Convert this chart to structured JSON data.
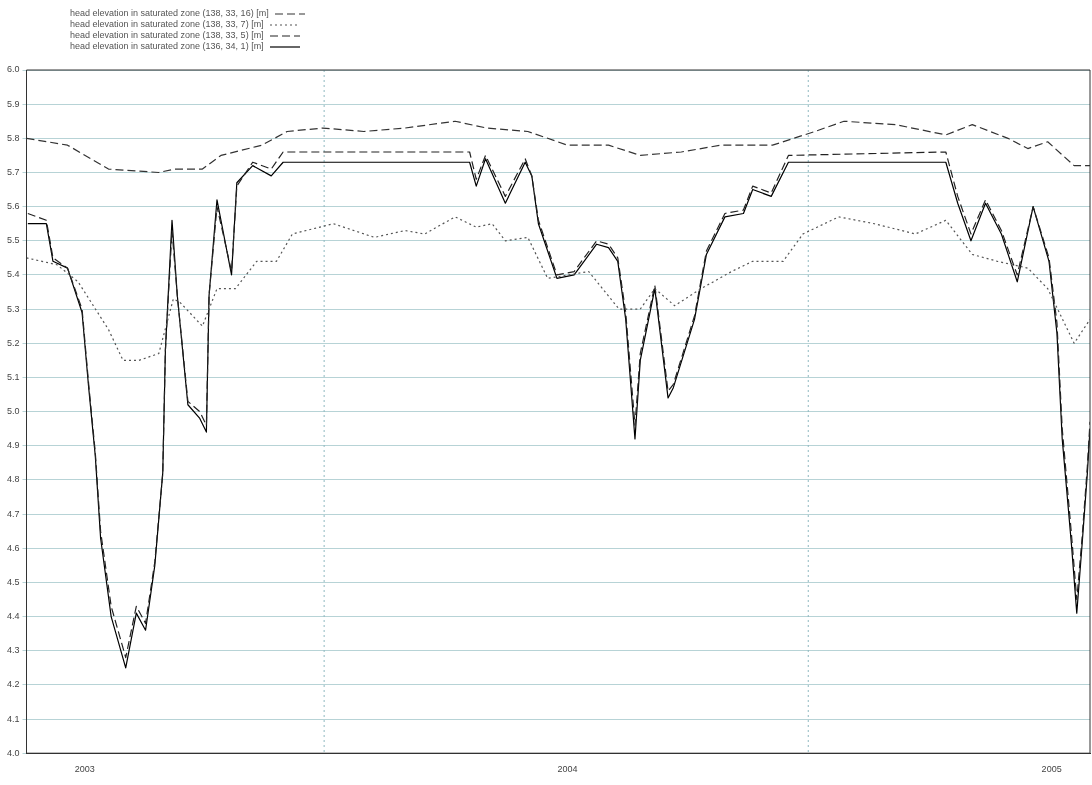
{
  "chart_data": {
    "type": "line",
    "legend": "top left",
    "grid": "y",
    "xlim": [
      "2002-11-18",
      "2005-01-30"
    ],
    "xticks": [
      "2003",
      "2004",
      "2005"
    ],
    "ylim": [
      4,
      6
    ],
    "yticks": [
      {
        "value": 4,
        "label": "4.0"
      },
      {
        "value": 4.1,
        "label": "4.1"
      },
      {
        "value": 4.2,
        "label": "4.2"
      },
      {
        "value": 4.3,
        "label": "4.3"
      },
      {
        "value": 4.4,
        "label": "4.4"
      },
      {
        "value": 4.5,
        "label": "4.5"
      },
      {
        "value": 4.6,
        "label": "4.6"
      },
      {
        "value": 4.7,
        "label": "4.7"
      },
      {
        "value": 4.8,
        "label": "4.8"
      },
      {
        "value": 4.9,
        "label": "4.9"
      },
      {
        "value": 5,
        "label": "5.0"
      },
      {
        "value": 5.1,
        "label": "5.1"
      },
      {
        "value": 5.2,
        "label": "5.2"
      },
      {
        "value": 5.3,
        "label": "5.3"
      },
      {
        "value": 5.4,
        "label": "5.4"
      },
      {
        "value": 5.5,
        "label": "5.5"
      },
      {
        "value": 5.6,
        "label": "5.6"
      },
      {
        "value": 5.7,
        "label": "5.7"
      },
      {
        "value": 5.8,
        "label": "5.8"
      },
      {
        "value": 5.9,
        "label": "5.9"
      },
      {
        "value": 6,
        "label": "6.0"
      }
    ],
    "ref_lines": [
      {
        "axis": "x",
        "value": "2003-07-01",
        "color": "#8fb8c0",
        "line_style": "dotted"
      },
      {
        "axis": "x",
        "value": "2004-07-01",
        "color": "#8fb8c0",
        "line_style": "dotted"
      }
    ],
    "series": [
      {
        "name": "head elevation in saturated zone (138, 33, 16) [m]",
        "color": "#333333",
        "line_style": "dashed",
        "x": [
          "2002-11-18",
          "2002-12-19",
          "2003-01-19",
          "2003-02-26",
          "2003-03-10",
          "2003-03-31",
          "2003-04-14",
          "2003-05-15",
          "2003-06-03",
          "2003-06-30",
          "2003-07-31",
          "2003-08-31",
          "2003-10-08",
          "2003-11-01",
          "2003-12-02",
          "2004-01-01",
          "2004-02-01",
          "2004-02-25",
          "2004-03-27",
          "2004-04-26",
          "2004-06-04",
          "2004-07-06",
          "2004-07-28",
          "2004-09-05",
          "2004-10-13",
          "2004-11-02",
          "2004-11-29",
          "2004-12-14",
          "2004-12-29",
          "2005-01-18",
          "2005-01-30"
        ],
        "values": [
          5.8,
          5.78,
          5.71,
          5.7,
          5.71,
          5.71,
          5.75,
          5.78,
          5.82,
          5.83,
          5.82,
          5.83,
          5.85,
          5.83,
          5.82,
          5.78,
          5.78,
          5.75,
          5.76,
          5.78,
          5.78,
          5.82,
          5.85,
          5.84,
          5.81,
          5.84,
          5.8,
          5.77,
          5.79,
          5.72,
          5.72
        ]
      },
      {
        "name": "head elevation in saturated zone (138, 33, 7) [m]",
        "color": "#555555",
        "line_style": "dotted",
        "x": [
          "2002-11-18",
          "2002-12-11",
          "2002-12-27",
          "2003-01-19",
          "2003-01-30",
          "2003-02-11",
          "2003-02-26",
          "2003-03-09",
          "2003-03-14",
          "2003-03-31",
          "2003-04-11",
          "2003-04-25",
          "2003-05-11",
          "2003-05-26",
          "2003-06-07",
          "2003-07-08",
          "2003-08-08",
          "2003-08-31",
          "2003-09-15",
          "2003-10-08",
          "2003-10-24",
          "2003-11-05",
          "2003-11-15",
          "2003-12-02",
          "2003-12-17",
          "2004-01-17",
          "2004-02-09",
          "2004-02-25",
          "2004-03-07",
          "2004-03-22",
          "2004-04-11",
          "2004-05-04",
          "2004-05-20",
          "2004-06-12",
          "2004-06-27",
          "2004-07-24",
          "2004-08-20",
          "2004-09-20",
          "2004-10-13",
          "2004-11-02",
          "2004-11-21",
          "2004-12-14",
          "2004-12-29",
          "2005-01-18",
          "2005-01-30"
        ],
        "values": [
          5.45,
          5.43,
          5.38,
          5.24,
          5.15,
          5.15,
          5.17,
          5.33,
          5.32,
          5.25,
          5.36,
          5.36,
          5.44,
          5.44,
          5.52,
          5.55,
          5.51,
          5.53,
          5.52,
          5.57,
          5.54,
          5.55,
          5.5,
          5.51,
          5.39,
          5.41,
          5.3,
          5.3,
          5.36,
          5.31,
          5.36,
          5.41,
          5.44,
          5.44,
          5.52,
          5.57,
          5.55,
          5.52,
          5.56,
          5.46,
          5.44,
          5.42,
          5.36,
          5.2,
          5.27
        ]
      },
      {
        "name": "head elevation in saturated zone (138, 33, 5) [m]",
        "color": "#222222",
        "line_style": "dashed",
        "x": [
          "2002-11-19",
          "2002-12-03",
          "2002-12-08",
          "2002-12-19",
          "2002-12-30",
          "2003-01-04",
          "2003-01-09",
          "2003-01-13",
          "2003-01-21",
          "2003-02-01",
          "2003-02-09",
          "2003-02-16",
          "2003-02-23",
          "2003-03-01",
          "2003-03-03",
          "2003-03-08",
          "2003-03-12",
          "2003-03-20",
          "2003-03-29",
          "2003-04-03",
          "2003-04-05",
          "2003-04-11",
          "2003-04-22",
          "2003-04-26",
          "2003-05-08",
          "2003-05-22",
          "2003-05-31",
          "2003-10-19",
          "2003-10-24",
          "2003-10-31",
          "2003-11-15",
          "2003-11-30",
          "2003-12-05",
          "2003-12-10",
          "2003-12-24",
          "2004-01-06",
          "2004-01-23",
          "2004-02-01",
          "2004-02-08",
          "2004-02-14",
          "2004-02-21",
          "2004-02-25",
          "2004-03-07",
          "2004-03-17",
          "2004-03-21",
          "2004-04-06",
          "2004-04-15",
          "2004-04-29",
          "2004-05-13",
          "2004-05-20",
          "2004-06-03",
          "2004-06-16",
          "2004-10-13",
          "2004-10-22",
          "2004-11-01",
          "2004-11-12",
          "2004-11-24",
          "2004-12-06",
          "2004-12-18",
          "2004-12-30",
          "2005-01-05",
          "2005-01-09",
          "2005-01-16",
          "2005-01-20",
          "2005-01-24",
          "2005-01-28",
          "2005-01-30"
        ],
        "values": [
          5.58,
          5.56,
          5.45,
          5.42,
          5.3,
          5.08,
          4.88,
          4.65,
          4.43,
          4.28,
          4.43,
          4.38,
          4.56,
          4.82,
          5.18,
          5.53,
          5.34,
          5.03,
          5.0,
          4.96,
          5.34,
          5.6,
          5.41,
          5.66,
          5.73,
          5.71,
          5.76,
          5.76,
          5.68,
          5.75,
          5.63,
          5.74,
          5.69,
          5.56,
          5.4,
          5.41,
          5.5,
          5.49,
          5.45,
          5.29,
          4.96,
          5.17,
          5.37,
          5.06,
          5.08,
          5.28,
          5.47,
          5.58,
          5.59,
          5.66,
          5.64,
          5.75,
          5.76,
          5.63,
          5.52,
          5.62,
          5.53,
          5.4,
          5.6,
          5.45,
          5.26,
          4.95,
          4.64,
          4.45,
          4.63,
          4.84,
          4.97
        ]
      },
      {
        "name": "head elevation in saturated zone (136, 34, 1) [m]",
        "color": "#000000",
        "line_style": "solid",
        "x": [
          "2002-11-19",
          "2002-12-03",
          "2002-12-08",
          "2002-12-19",
          "2002-12-30",
          "2003-01-04",
          "2003-01-09",
          "2003-01-13",
          "2003-01-21",
          "2003-02-01",
          "2003-02-09",
          "2003-02-16",
          "2003-02-23",
          "2003-03-01",
          "2003-03-03",
          "2003-03-08",
          "2003-03-12",
          "2003-03-20",
          "2003-03-29",
          "2003-04-03",
          "2003-04-05",
          "2003-04-11",
          "2003-04-22",
          "2003-04-26",
          "2003-05-08",
          "2003-05-22",
          "2003-05-31",
          "2003-10-19",
          "2003-10-24",
          "2003-10-31",
          "2003-11-15",
          "2003-11-30",
          "2003-12-05",
          "2003-12-10",
          "2003-12-24",
          "2004-01-06",
          "2004-01-23",
          "2004-02-01",
          "2004-02-08",
          "2004-02-14",
          "2004-02-21",
          "2004-02-25",
          "2004-03-07",
          "2004-03-17",
          "2004-03-21",
          "2004-04-06",
          "2004-04-15",
          "2004-04-29",
          "2004-05-13",
          "2004-05-20",
          "2004-06-03",
          "2004-06-16",
          "2004-10-13",
          "2004-10-22",
          "2004-11-01",
          "2004-11-12",
          "2004-11-24",
          "2004-12-06",
          "2004-12-18",
          "2004-12-30",
          "2005-01-05",
          "2005-01-09",
          "2005-01-16",
          "2005-01-20",
          "2005-01-24",
          "2005-01-28",
          "2005-01-30"
        ],
        "values": [
          5.55,
          5.55,
          5.44,
          5.42,
          5.29,
          5.07,
          4.87,
          4.63,
          4.4,
          4.25,
          4.41,
          4.36,
          4.55,
          4.82,
          5.18,
          5.56,
          5.34,
          5.02,
          4.98,
          4.94,
          5.34,
          5.62,
          5.4,
          5.67,
          5.72,
          5.69,
          5.73,
          5.73,
          5.66,
          5.74,
          5.61,
          5.73,
          5.69,
          5.55,
          5.39,
          5.4,
          5.49,
          5.48,
          5.44,
          5.27,
          4.92,
          5.15,
          5.36,
          5.04,
          5.07,
          5.27,
          5.46,
          5.57,
          5.58,
          5.65,
          5.63,
          5.73,
          5.73,
          5.61,
          5.5,
          5.61,
          5.52,
          5.38,
          5.6,
          5.44,
          5.23,
          4.92,
          4.61,
          4.41,
          4.61,
          4.82,
          4.95
        ]
      }
    ]
  }
}
